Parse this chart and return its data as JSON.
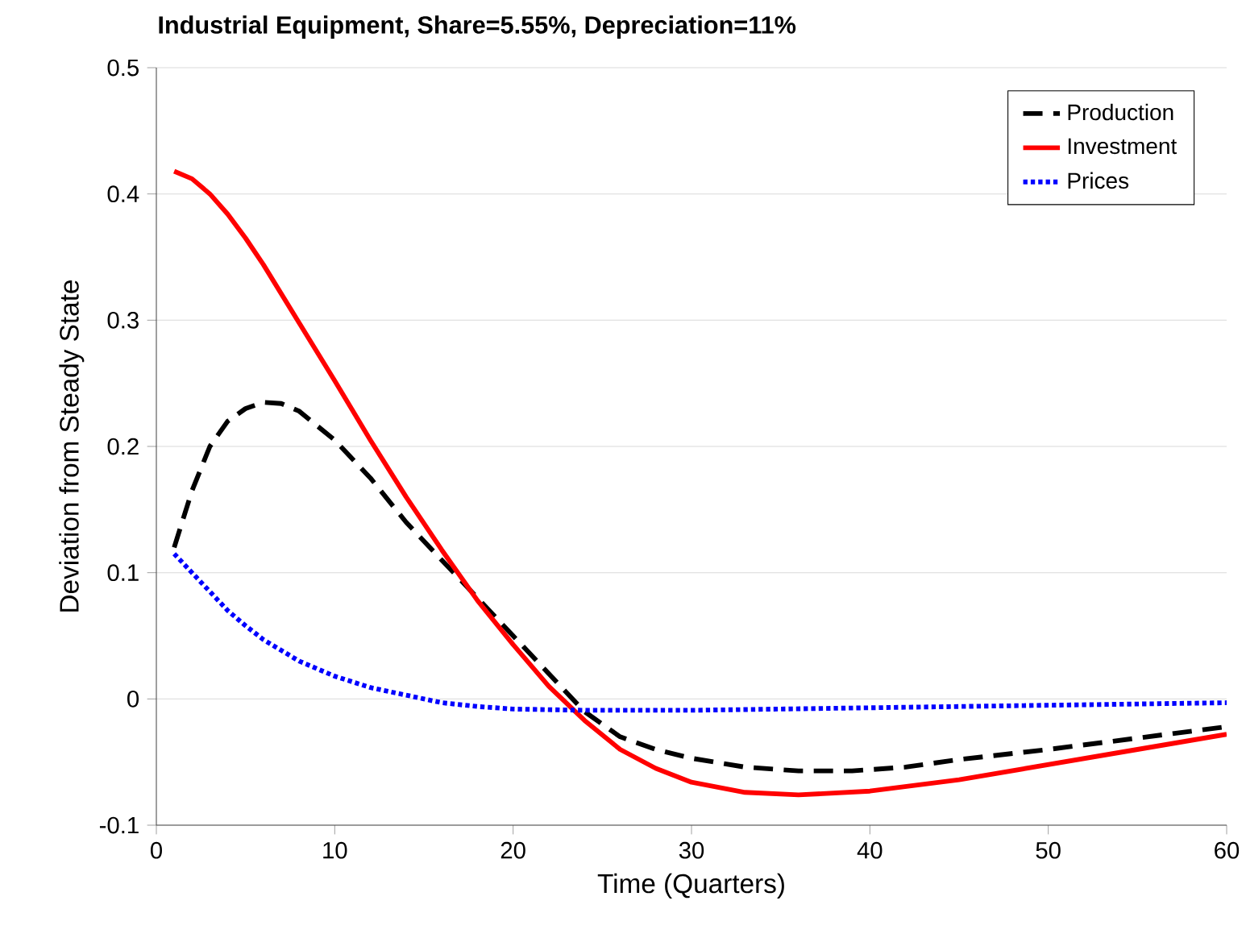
{
  "chart_data": {
    "type": "line",
    "title": "Industrial Equipment, Share=5.55%, Depreciation=11%",
    "xlabel": "Time (Quarters)",
    "ylabel": "Deviation from Steady State",
    "xlim": [
      0,
      60
    ],
    "ylim": [
      -0.1,
      0.5
    ],
    "xticks": [
      0,
      10,
      20,
      30,
      40,
      50,
      60
    ],
    "yticks": [
      -0.1,
      0,
      0.1,
      0.2,
      0.3,
      0.4,
      0.5
    ],
    "grid": "y",
    "legend": "top right",
    "marker": "none",
    "series": [
      {
        "name": "Production",
        "color": "#000000",
        "line_style": "dashed",
        "x": [
          1,
          2,
          3,
          4,
          5,
          6,
          7,
          8,
          10,
          12,
          14,
          16,
          18,
          20,
          22,
          24,
          26,
          28,
          30,
          33,
          36,
          39,
          42,
          45,
          50,
          55,
          60
        ],
        "values": [
          0.12,
          0.165,
          0.2,
          0.22,
          0.23,
          0.235,
          0.234,
          0.228,
          0.205,
          0.175,
          0.14,
          0.11,
          0.08,
          0.05,
          0.02,
          -0.01,
          -0.03,
          -0.04,
          -0.047,
          -0.054,
          -0.057,
          -0.057,
          -0.054,
          -0.048,
          -0.04,
          -0.031,
          -0.022
        ]
      },
      {
        "name": "Investment",
        "color": "#ff0000",
        "line_style": "solid",
        "x": [
          1,
          2,
          3,
          4,
          5,
          6,
          8,
          10,
          12,
          14,
          16,
          18,
          20,
          22,
          24,
          26,
          28,
          30,
          33,
          36,
          40,
          45,
          50,
          55,
          60
        ],
        "values": [
          0.418,
          0.412,
          0.4,
          0.384,
          0.365,
          0.344,
          0.298,
          0.252,
          0.205,
          0.16,
          0.118,
          0.078,
          0.043,
          0.01,
          -0.017,
          -0.04,
          -0.055,
          -0.066,
          -0.074,
          -0.076,
          -0.073,
          -0.064,
          -0.052,
          -0.04,
          -0.028
        ]
      },
      {
        "name": "Prices",
        "color": "#0000ff",
        "line_style": "dotted",
        "x": [
          1,
          2,
          3,
          4,
          5,
          6,
          8,
          10,
          12,
          14,
          16,
          18,
          20,
          24,
          30,
          40,
          50,
          60
        ],
        "values": [
          0.115,
          0.1,
          0.085,
          0.07,
          0.058,
          0.047,
          0.03,
          0.018,
          0.009,
          0.003,
          -0.003,
          -0.006,
          -0.008,
          -0.009,
          -0.009,
          -0.007,
          -0.005,
          -0.003
        ]
      }
    ]
  }
}
